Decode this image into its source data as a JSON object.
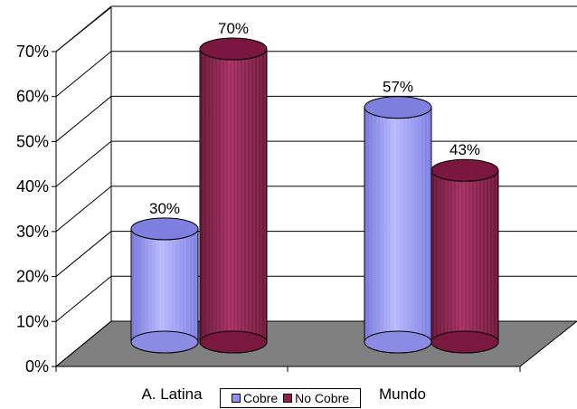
{
  "chart_data": {
    "type": "bar",
    "categories": [
      "A. Latina",
      "Mundo"
    ],
    "series": [
      {
        "name": "Cobre",
        "values": [
          30,
          57
        ],
        "data_labels": [
          "30%",
          "57%"
        ],
        "color": "#8f8fe6"
      },
      {
        "name": "No Cobre",
        "values": [
          70,
          43
        ],
        "data_labels": [
          "70%",
          "43%"
        ],
        "color": "#8b204c"
      }
    ],
    "ylim": [
      0,
      70
    ],
    "y_ticks": [
      "0%",
      "10%",
      "20%",
      "30%",
      "40%",
      "50%",
      "60%",
      "70%"
    ],
    "grid": true,
    "legend_position": "bottom",
    "style": "3d-cylinder",
    "floor_color": "#808080"
  }
}
